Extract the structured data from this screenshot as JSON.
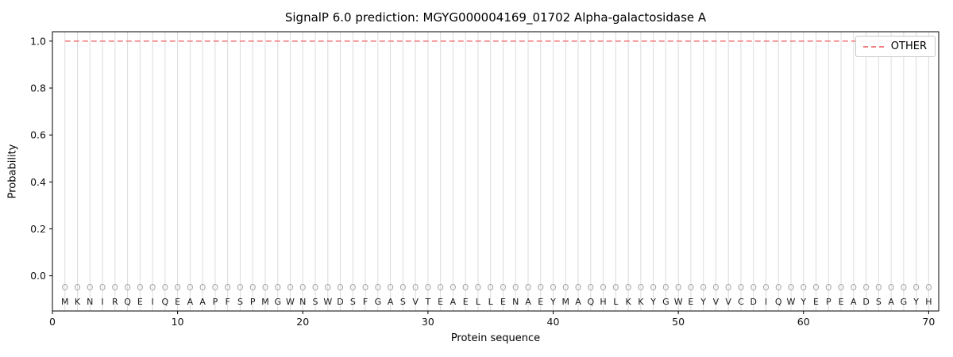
{
  "chart_data": {
    "type": "line",
    "title": "SignalP 6.0 prediction: MGYG000004169_01702 Alpha-galactosidase A",
    "xlabel": "Protein sequence",
    "ylabel": "Probability",
    "xlim": [
      0,
      70.8
    ],
    "ylim": [
      -0.15,
      1.04
    ],
    "xticks": [
      0,
      10,
      20,
      30,
      40,
      50,
      60,
      70
    ],
    "yticks": [
      0.0,
      0.2,
      0.4,
      0.6,
      0.8,
      1.0
    ],
    "grid": "vertical line at every residue position",
    "legend_position": "upper right",
    "series": [
      {
        "name": "OTHER",
        "color": "#f08080",
        "linestyle": "dashed",
        "x_start": 1,
        "x_end": 70,
        "constant_value": 1.0
      }
    ],
    "sequence": "MKNIRQEIQEAAPFSPMGWNSWDSFGASVTEAELLENAEYMAQHLKKYGWEYVVCDIQWYEPEADSAGYH",
    "sequence_length": 70,
    "position_marks_char": "O",
    "position_marks_y": -0.05,
    "sequence_y": -0.11,
    "letter_color": "#1a1a1a",
    "mark_color": "#a6a6a6",
    "grid_color": "#dcdcdc",
    "axis_color": "#000000"
  }
}
